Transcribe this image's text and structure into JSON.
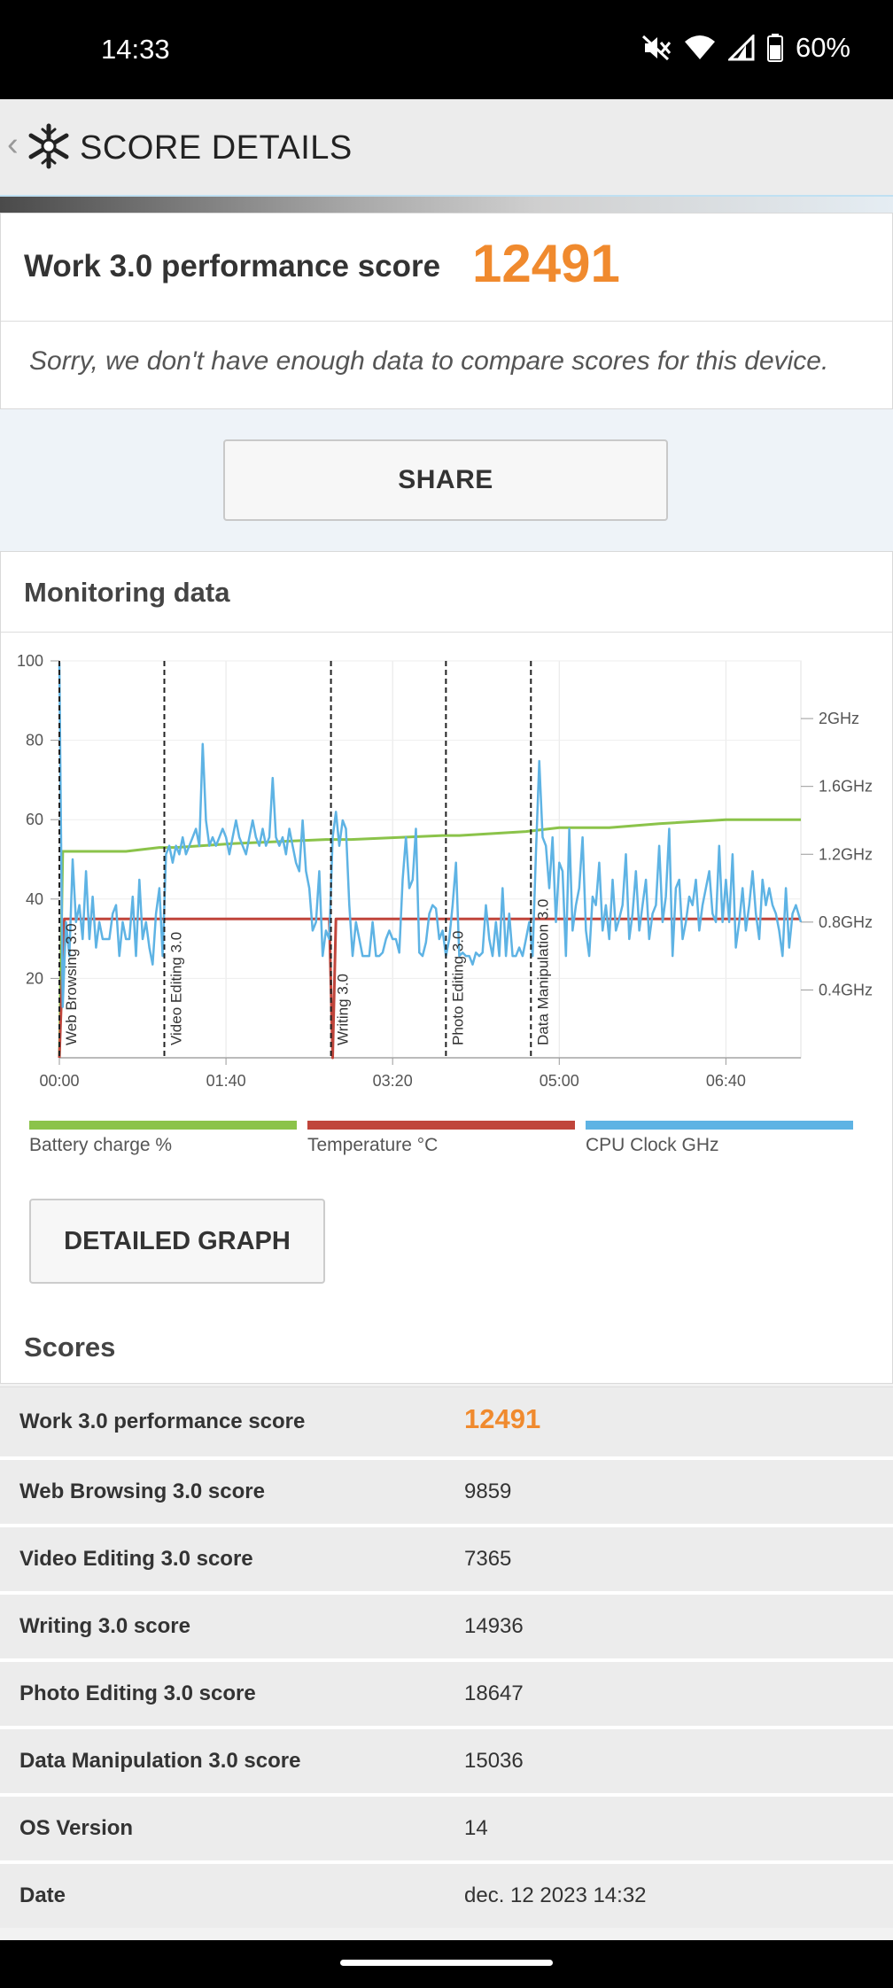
{
  "status_bar": {
    "time": "14:33",
    "battery": "60%"
  },
  "app_bar": {
    "title": "SCORE DETAILS"
  },
  "summary": {
    "label": "Work 3.0 performance score",
    "score": "12491",
    "note": "Sorry, we don't have enough data to compare scores for this device."
  },
  "share_label": "SHARE",
  "monitoring": {
    "heading": "Monitoring data",
    "detailed_graph_label": "DETAILED GRAPH",
    "legend": [
      {
        "label": "Battery charge %",
        "color": "#8bc34a"
      },
      {
        "label": "Temperature °C",
        "color": "#c0453b"
      },
      {
        "label": "CPU Clock GHz",
        "color": "#5eb3e4"
      }
    ]
  },
  "chart_data": {
    "type": "line",
    "x_ticks": [
      "00:00",
      "01:40",
      "03:20",
      "05:00",
      "06:40"
    ],
    "y_left_ticks": [
      "100",
      "80",
      "60",
      "40",
      "20"
    ],
    "y_right_ticks": [
      "2GHz",
      "1.6GHz",
      "1.2GHz",
      "0.8GHz",
      "0.4GHz"
    ],
    "xlim_seconds": [
      0,
      445
    ],
    "y_left_range": [
      0,
      100
    ],
    "y_right_range_ghz": [
      0,
      2.34
    ],
    "grid": true,
    "phases": [
      {
        "label": "Web Browsing 3.0",
        "t": 0
      },
      {
        "label": "Video Editing 3.0",
        "t": 63
      },
      {
        "label": "Writing 3.0",
        "t": 163
      },
      {
        "label": "Photo Editing 3.0",
        "t": 232
      },
      {
        "label": "Data Manipulation 3.0",
        "t": 283
      }
    ],
    "series": [
      {
        "name": "Battery charge %",
        "points": [
          [
            0,
            0
          ],
          [
            2,
            52
          ],
          [
            40,
            52
          ],
          [
            60,
            53
          ],
          [
            70,
            53
          ],
          [
            105,
            54
          ],
          [
            160,
            55
          ],
          [
            163,
            55
          ],
          [
            175,
            55
          ],
          [
            230,
            56
          ],
          [
            240,
            56
          ],
          [
            280,
            57
          ],
          [
            300,
            58
          ],
          [
            330,
            58
          ],
          [
            360,
            59
          ],
          [
            400,
            60
          ],
          [
            445,
            60
          ]
        ]
      },
      {
        "name": "Temperature °C",
        "points": [
          [
            0,
            0
          ],
          [
            3,
            35
          ],
          [
            20,
            35
          ],
          [
            50,
            35
          ],
          [
            80,
            35
          ],
          [
            120,
            35
          ],
          [
            160,
            35
          ],
          [
            162,
            35
          ],
          [
            164,
            0
          ],
          [
            166,
            35
          ],
          [
            200,
            35
          ],
          [
            240,
            35
          ],
          [
            280,
            35
          ],
          [
            320,
            35
          ],
          [
            360,
            35
          ],
          [
            400,
            35
          ],
          [
            445,
            35
          ]
        ]
      },
      {
        "name": "CPU Clock GHz",
        "points": [
          [
            0,
            2.33
          ],
          [
            2,
            0.3
          ],
          [
            4,
            0.8
          ],
          [
            6,
            0.6
          ],
          [
            8,
            1.17
          ],
          [
            10,
            0.8
          ],
          [
            12,
            0.9
          ],
          [
            14,
            0.7
          ],
          [
            16,
            1.1
          ],
          [
            18,
            0.7
          ],
          [
            20,
            0.95
          ],
          [
            22,
            0.65
          ],
          [
            24,
            0.8
          ],
          [
            26,
            0.7
          ],
          [
            28,
            0.7
          ],
          [
            30,
            0.7
          ],
          [
            32,
            0.85
          ],
          [
            34,
            0.9
          ],
          [
            36,
            0.6
          ],
          [
            38,
            0.8
          ],
          [
            40,
            0.7
          ],
          [
            42,
            0.7
          ],
          [
            44,
            0.95
          ],
          [
            46,
            0.6
          ],
          [
            48,
            1.05
          ],
          [
            50,
            0.7
          ],
          [
            52,
            0.8
          ],
          [
            54,
            0.65
          ],
          [
            56,
            0.55
          ],
          [
            58,
            0.85
          ],
          [
            60,
            1.0
          ],
          [
            62,
            0.6
          ],
          [
            64,
            1.2
          ],
          [
            66,
            1.25
          ],
          [
            68,
            1.15
          ],
          [
            70,
            1.25
          ],
          [
            72,
            1.2
          ],
          [
            74,
            1.3
          ],
          [
            76,
            1.2
          ],
          [
            78,
            1.25
          ],
          [
            80,
            1.3
          ],
          [
            82,
            1.35
          ],
          [
            84,
            1.25
          ],
          [
            86,
            1.85
          ],
          [
            88,
            1.4
          ],
          [
            90,
            1.25
          ],
          [
            92,
            1.3
          ],
          [
            94,
            1.25
          ],
          [
            96,
            1.3
          ],
          [
            98,
            1.35
          ],
          [
            100,
            1.3
          ],
          [
            102,
            1.2
          ],
          [
            104,
            1.3
          ],
          [
            106,
            1.4
          ],
          [
            108,
            1.3
          ],
          [
            110,
            1.25
          ],
          [
            112,
            1.2
          ],
          [
            114,
            1.3
          ],
          [
            116,
            1.4
          ],
          [
            118,
            1.3
          ],
          [
            120,
            1.25
          ],
          [
            122,
            1.35
          ],
          [
            124,
            1.25
          ],
          [
            126,
            1.3
          ],
          [
            128,
            1.65
          ],
          [
            130,
            1.3
          ],
          [
            132,
            1.25
          ],
          [
            134,
            1.3
          ],
          [
            136,
            1.2
          ],
          [
            138,
            1.35
          ],
          [
            140,
            1.25
          ],
          [
            142,
            1.15
          ],
          [
            144,
            1.1
          ],
          [
            146,
            1.4
          ],
          [
            148,
            1.1
          ],
          [
            150,
            1.0
          ],
          [
            152,
            0.75
          ],
          [
            154,
            0.8
          ],
          [
            156,
            1.1
          ],
          [
            158,
            0.6
          ],
          [
            160,
            0.75
          ],
          [
            162,
            0.7
          ],
          [
            164,
            1.3
          ],
          [
            166,
            1.45
          ],
          [
            168,
            1.25
          ],
          [
            170,
            1.4
          ],
          [
            172,
            1.35
          ],
          [
            174,
            0.9
          ],
          [
            176,
            0.6
          ],
          [
            178,
            0.8
          ],
          [
            180,
            0.7
          ],
          [
            182,
            0.6
          ],
          [
            184,
            0.6
          ],
          [
            186,
            0.6
          ],
          [
            188,
            0.8
          ],
          [
            190,
            0.6
          ],
          [
            192,
            0.6
          ],
          [
            194,
            0.62
          ],
          [
            196,
            0.7
          ],
          [
            198,
            0.75
          ],
          [
            200,
            0.7
          ],
          [
            202,
            0.7
          ],
          [
            204,
            0.62
          ],
          [
            206,
            1.05
          ],
          [
            208,
            1.3
          ],
          [
            210,
            1.0
          ],
          [
            212,
            1.05
          ],
          [
            214,
            1.35
          ],
          [
            216,
            0.62
          ],
          [
            218,
            0.6
          ],
          [
            220,
            0.68
          ],
          [
            222,
            0.85
          ],
          [
            224,
            0.9
          ],
          [
            226,
            0.88
          ],
          [
            228,
            0.7
          ],
          [
            230,
            0.75
          ],
          [
            232,
            0.6
          ],
          [
            234,
            0.7
          ],
          [
            236,
            0.9
          ],
          [
            238,
            1.15
          ],
          [
            240,
            0.6
          ],
          [
            242,
            0.62
          ],
          [
            244,
            0.6
          ],
          [
            246,
            0.6
          ],
          [
            248,
            0.55
          ],
          [
            250,
            0.62
          ],
          [
            252,
            0.6
          ],
          [
            254,
            0.62
          ],
          [
            256,
            0.9
          ],
          [
            258,
            0.7
          ],
          [
            260,
            0.6
          ],
          [
            262,
            0.8
          ],
          [
            264,
            0.6
          ],
          [
            266,
            1.0
          ],
          [
            268,
            0.6
          ],
          [
            270,
            0.85
          ],
          [
            272,
            0.6
          ],
          [
            274,
            0.6
          ],
          [
            276,
            0.65
          ],
          [
            278,
            0.6
          ],
          [
            280,
            0.7
          ],
          [
            282,
            0.8
          ],
          [
            284,
            0.6
          ],
          [
            286,
            1.2
          ],
          [
            288,
            1.75
          ],
          [
            290,
            1.3
          ],
          [
            292,
            1.25
          ],
          [
            294,
            1.0
          ],
          [
            296,
            1.3
          ],
          [
            298,
            0.8
          ],
          [
            300,
            1.15
          ],
          [
            302,
            1.1
          ],
          [
            304,
            0.6
          ],
          [
            306,
            1.35
          ],
          [
            308,
            0.75
          ],
          [
            310,
            0.9
          ],
          [
            312,
            1.0
          ],
          [
            314,
            1.3
          ],
          [
            316,
            0.75
          ],
          [
            318,
            0.6
          ],
          [
            320,
            0.95
          ],
          [
            322,
            0.9
          ],
          [
            324,
            1.15
          ],
          [
            326,
            0.75
          ],
          [
            328,
            0.9
          ],
          [
            330,
            0.7
          ],
          [
            332,
            1.05
          ],
          [
            334,
            0.75
          ],
          [
            336,
            0.82
          ],
          [
            338,
            0.9
          ],
          [
            340,
            1.2
          ],
          [
            342,
            0.7
          ],
          [
            344,
            0.85
          ],
          [
            346,
            1.1
          ],
          [
            348,
            0.75
          ],
          [
            350,
            0.9
          ],
          [
            352,
            1.05
          ],
          [
            354,
            0.7
          ],
          [
            356,
            0.85
          ],
          [
            358,
            0.9
          ],
          [
            360,
            1.25
          ],
          [
            362,
            0.8
          ],
          [
            364,
            0.95
          ],
          [
            366,
            1.35
          ],
          [
            368,
            0.6
          ],
          [
            370,
            1.0
          ],
          [
            372,
            1.05
          ],
          [
            374,
            0.7
          ],
          [
            376,
            0.8
          ],
          [
            378,
            0.95
          ],
          [
            380,
            0.9
          ],
          [
            382,
            1.05
          ],
          [
            384,
            0.75
          ],
          [
            386,
            0.9
          ],
          [
            388,
            1.0
          ],
          [
            390,
            1.1
          ],
          [
            392,
            0.85
          ],
          [
            394,
            0.8
          ],
          [
            396,
            1.25
          ],
          [
            398,
            0.8
          ],
          [
            400,
            1.05
          ],
          [
            402,
            0.8
          ],
          [
            404,
            1.2
          ],
          [
            406,
            0.65
          ],
          [
            408,
            0.8
          ],
          [
            410,
            1.0
          ],
          [
            412,
            0.75
          ],
          [
            414,
            0.9
          ],
          [
            416,
            1.1
          ],
          [
            418,
            0.85
          ],
          [
            420,
            0.7
          ],
          [
            422,
            1.05
          ],
          [
            424,
            0.9
          ],
          [
            426,
            1.0
          ],
          [
            428,
            0.9
          ],
          [
            430,
            0.85
          ],
          [
            432,
            0.75
          ],
          [
            434,
            0.6
          ],
          [
            436,
            1.0
          ],
          [
            438,
            0.65
          ],
          [
            440,
            0.85
          ],
          [
            442,
            0.9
          ],
          [
            445,
            0.8
          ]
        ]
      }
    ]
  },
  "scores": {
    "heading": "Scores",
    "rows": [
      {
        "label": "Work 3.0 performance score",
        "value": "12491"
      },
      {
        "label": "Web Browsing 3.0 score",
        "value": "9859"
      },
      {
        "label": "Video Editing 3.0 score",
        "value": "7365"
      },
      {
        "label": "Writing 3.0 score",
        "value": "14936"
      },
      {
        "label": "Photo Editing 3.0 score",
        "value": "18647"
      },
      {
        "label": "Data Manipulation 3.0 score",
        "value": "15036"
      },
      {
        "label": "OS Version",
        "value": "14"
      },
      {
        "label": "Date",
        "value": "dec. 12 2023 14:32"
      }
    ]
  }
}
